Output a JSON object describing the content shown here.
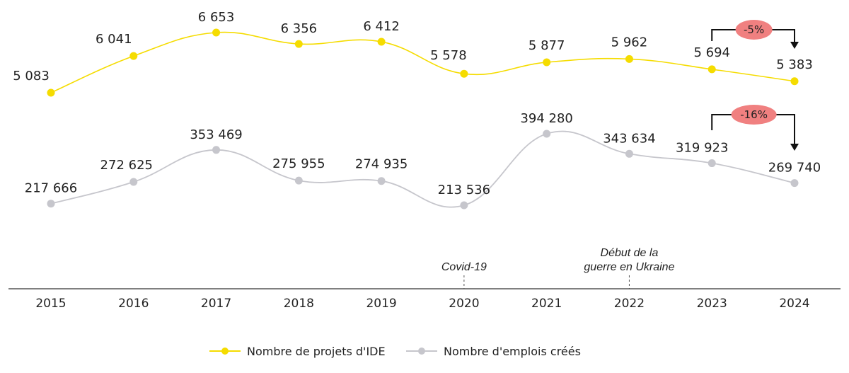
{
  "chart_data": {
    "type": "line",
    "x": [
      "2015",
      "2016",
      "2017",
      "2018",
      "2019",
      "2020",
      "2021",
      "2022",
      "2023",
      "2024"
    ],
    "series": [
      {
        "name": "Nombre de projets d'IDE",
        "color": "#f5dc00",
        "values": [
          5083,
          6041,
          6653,
          6356,
          6412,
          5578,
          5877,
          5962,
          5694,
          5383
        ],
        "labels": [
          "5 083",
          "6 041",
          "6 653",
          "6 356",
          "6 412",
          "5 578",
          "5 877",
          "5 962",
          "5 694",
          "5 383"
        ]
      },
      {
        "name": "Nombre d'emplois créés",
        "color": "#c6c6cc",
        "values": [
          217666,
          272625,
          353469,
          275955,
          274935,
          213536,
          394280,
          343634,
          319923,
          269740
        ],
        "labels": [
          "217 666",
          "272 625",
          "353 469",
          "275 955",
          "274 935",
          "213 536",
          "394 280",
          "343 634",
          "319 923",
          "269 740"
        ]
      }
    ],
    "annotations": [
      {
        "x": "2020",
        "text": [
          "Covid-19"
        ]
      },
      {
        "x": "2022",
        "text": [
          "Début de la",
          "guerre en Ukraine"
        ]
      }
    ],
    "changes": [
      {
        "series": "Nombre de projets d'IDE",
        "from": "2023",
        "to": "2024",
        "label": "-5%"
      },
      {
        "series": "Nombre d'emplois créés",
        "from": "2023",
        "to": "2024",
        "label": "-16%"
      }
    ],
    "badge_color": "#f08080",
    "legend_position": "bottom-center",
    "grid": false
  }
}
